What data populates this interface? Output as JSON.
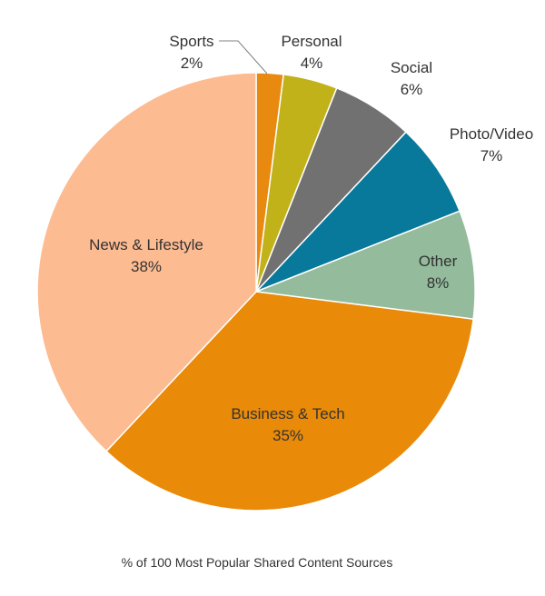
{
  "chart_data": {
    "type": "pie",
    "caption": "% of 100 Most Popular Shared Content Sources",
    "slices": [
      {
        "label": "Sports",
        "value": 2,
        "value_label": "2%",
        "color": "#e88a10"
      },
      {
        "label": "Personal",
        "value": 4,
        "value_label": "4%",
        "color": "#c2b21a"
      },
      {
        "label": "Social",
        "value": 6,
        "value_label": "6%",
        "color": "#717171"
      },
      {
        "label": "Photo/Video",
        "value": 7,
        "value_label": "7%",
        "color": "#08799a"
      },
      {
        "label": "Other",
        "value": 8,
        "value_label": "8%",
        "color": "#93bb9c"
      },
      {
        "label": "Business & Tech",
        "value": 35,
        "value_label": "35%",
        "color": "#e98a08"
      },
      {
        "label": "News & Lifestyle",
        "value": 38,
        "value_label": "38%",
        "color": "#fdbb91"
      }
    ]
  }
}
